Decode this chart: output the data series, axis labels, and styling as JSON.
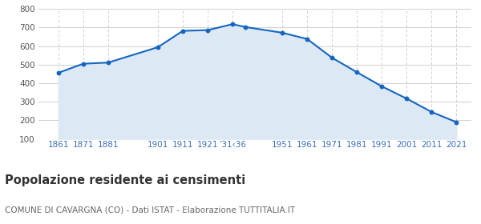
{
  "years": [
    1861,
    1871,
    1881,
    1901,
    1911,
    1921,
    1931,
    1936,
    1951,
    1961,
    1971,
    1981,
    1991,
    2001,
    2011,
    2021
  ],
  "population": [
    456,
    505,
    511,
    594,
    682,
    686,
    718,
    703,
    672,
    638,
    537,
    459,
    383,
    317,
    245,
    190
  ],
  "ylim": [
    100,
    800
  ],
  "yticks": [
    100,
    200,
    300,
    400,
    500,
    600,
    700,
    800
  ],
  "xlim_left": 1853,
  "xlim_right": 2027,
  "line_color": "#1565c0",
  "fill_color": "#dce9f5",
  "marker_color": "#1565c0",
  "grid_color": "#c8c8c8",
  "background_color": "#ffffff",
  "title": "Popolazione residente ai censimenti",
  "subtitle": "COMUNE DI CAVARGNA (CO) - Dati ISTAT - Elaborazione TUTTITALIA.IT",
  "title_fontsize": 10.5,
  "subtitle_fontsize": 7.5,
  "title_color": "#333333",
  "subtitle_color": "#666666",
  "tick_color": "#3a6dbf",
  "ytick_color": "#555555",
  "tick_fontsize": 7.5,
  "x_tick_positions": [
    1861,
    1871,
    1881,
    1901,
    1911,
    1921,
    1931,
    1951,
    1961,
    1971,
    1981,
    1991,
    2001,
    2011,
    2021
  ],
  "x_tick_labels": [
    "1861",
    "1871",
    "1881",
    "1901",
    "1911",
    "1921",
    "’31‹36",
    "1951",
    "1961",
    "1971",
    "1981",
    "1991",
    "2001",
    "2011",
    "2021"
  ]
}
